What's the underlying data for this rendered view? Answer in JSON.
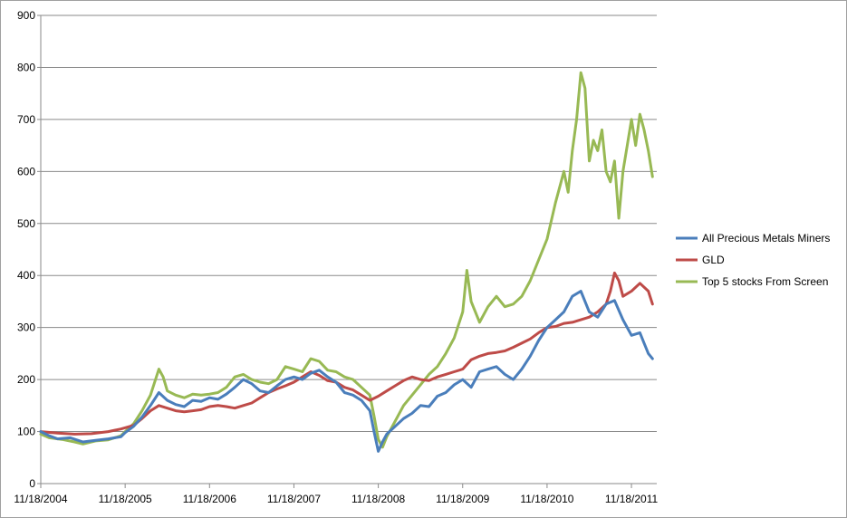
{
  "chart_data": {
    "type": "line",
    "title": "",
    "xlabel": "",
    "ylabel": "",
    "ylim": [
      0,
      900
    ],
    "yticks": [
      0,
      100,
      200,
      300,
      400,
      500,
      600,
      700,
      800,
      900
    ],
    "x_tick_labels": [
      "11/18/2004",
      "11/18/2005",
      "11/18/2006",
      "11/18/2007",
      "11/18/2008",
      "11/18/2009",
      "11/18/2010",
      "11/18/2011"
    ],
    "xlim": [
      2004.0,
      2011.3
    ],
    "grid": true,
    "legend_position": "right",
    "series": [
      {
        "name": "All Precious Metals Miners",
        "color": "#4a7ebb",
        "points": [
          [
            2004.0,
            100
          ],
          [
            2004.1,
            92
          ],
          [
            2004.2,
            86
          ],
          [
            2004.35,
            88
          ],
          [
            2004.5,
            80
          ],
          [
            2004.65,
            83
          ],
          [
            2004.8,
            86
          ],
          [
            2004.95,
            90
          ],
          [
            2005.0,
            98
          ],
          [
            2005.1,
            110
          ],
          [
            2005.2,
            128
          ],
          [
            2005.3,
            150
          ],
          [
            2005.4,
            175
          ],
          [
            2005.5,
            160
          ],
          [
            2005.6,
            152
          ],
          [
            2005.7,
            148
          ],
          [
            2005.8,
            160
          ],
          [
            2005.9,
            158
          ],
          [
            2006.0,
            165
          ],
          [
            2006.1,
            162
          ],
          [
            2006.2,
            172
          ],
          [
            2006.3,
            185
          ],
          [
            2006.4,
            200
          ],
          [
            2006.5,
            192
          ],
          [
            2006.6,
            178
          ],
          [
            2006.7,
            175
          ],
          [
            2006.8,
            188
          ],
          [
            2006.9,
            200
          ],
          [
            2007.0,
            205
          ],
          [
            2007.1,
            200
          ],
          [
            2007.2,
            212
          ],
          [
            2007.3,
            218
          ],
          [
            2007.4,
            205
          ],
          [
            2007.5,
            195
          ],
          [
            2007.6,
            175
          ],
          [
            2007.7,
            170
          ],
          [
            2007.8,
            160
          ],
          [
            2007.9,
            140
          ],
          [
            2007.95,
            100
          ],
          [
            2008.0,
            62
          ],
          [
            2008.05,
            80
          ],
          [
            2008.1,
            95
          ],
          [
            2008.2,
            110
          ],
          [
            2008.3,
            125
          ],
          [
            2008.4,
            135
          ],
          [
            2008.5,
            150
          ],
          [
            2008.6,
            148
          ],
          [
            2008.7,
            168
          ],
          [
            2008.8,
            175
          ],
          [
            2008.9,
            190
          ],
          [
            2009.0,
            200
          ],
          [
            2009.1,
            185
          ],
          [
            2009.2,
            215
          ],
          [
            2009.3,
            220
          ],
          [
            2009.4,
            225
          ],
          [
            2009.5,
            210
          ],
          [
            2009.6,
            200
          ],
          [
            2009.7,
            220
          ],
          [
            2009.8,
            245
          ],
          [
            2009.9,
            275
          ],
          [
            2010.0,
            300
          ],
          [
            2010.1,
            315
          ],
          [
            2010.2,
            330
          ],
          [
            2010.3,
            360
          ],
          [
            2010.4,
            370
          ],
          [
            2010.5,
            330
          ],
          [
            2010.6,
            320
          ],
          [
            2010.7,
            345
          ],
          [
            2010.8,
            352
          ],
          [
            2010.9,
            315
          ],
          [
            2011.0,
            285
          ],
          [
            2011.1,
            290
          ],
          [
            2011.15,
            270
          ],
          [
            2011.2,
            250
          ],
          [
            2011.25,
            240
          ]
        ]
      },
      {
        "name": "GLD",
        "color": "#be4b48",
        "points": [
          [
            2004.0,
            100
          ],
          [
            2004.2,
            97
          ],
          [
            2004.4,
            95
          ],
          [
            2004.6,
            96
          ],
          [
            2004.8,
            100
          ],
          [
            2004.95,
            105
          ],
          [
            2005.1,
            112
          ],
          [
            2005.2,
            125
          ],
          [
            2005.3,
            140
          ],
          [
            2005.4,
            150
          ],
          [
            2005.5,
            145
          ],
          [
            2005.6,
            140
          ],
          [
            2005.7,
            138
          ],
          [
            2005.8,
            140
          ],
          [
            2005.9,
            142
          ],
          [
            2006.0,
            148
          ],
          [
            2006.1,
            150
          ],
          [
            2006.2,
            148
          ],
          [
            2006.3,
            145
          ],
          [
            2006.4,
            150
          ],
          [
            2006.5,
            155
          ],
          [
            2006.6,
            165
          ],
          [
            2006.7,
            175
          ],
          [
            2006.8,
            182
          ],
          [
            2006.9,
            188
          ],
          [
            2007.0,
            195
          ],
          [
            2007.1,
            205
          ],
          [
            2007.2,
            215
          ],
          [
            2007.3,
            208
          ],
          [
            2007.4,
            198
          ],
          [
            2007.5,
            195
          ],
          [
            2007.6,
            185
          ],
          [
            2007.7,
            180
          ],
          [
            2007.8,
            170
          ],
          [
            2007.9,
            160
          ],
          [
            2008.0,
            168
          ],
          [
            2008.1,
            178
          ],
          [
            2008.2,
            188
          ],
          [
            2008.3,
            198
          ],
          [
            2008.4,
            205
          ],
          [
            2008.5,
            200
          ],
          [
            2008.6,
            198
          ],
          [
            2008.7,
            205
          ],
          [
            2008.8,
            210
          ],
          [
            2008.9,
            215
          ],
          [
            2009.0,
            220
          ],
          [
            2009.1,
            238
          ],
          [
            2009.2,
            245
          ],
          [
            2009.3,
            250
          ],
          [
            2009.4,
            252
          ],
          [
            2009.5,
            255
          ],
          [
            2009.6,
            262
          ],
          [
            2009.7,
            270
          ],
          [
            2009.8,
            278
          ],
          [
            2009.9,
            290
          ],
          [
            2010.0,
            300
          ],
          [
            2010.1,
            302
          ],
          [
            2010.2,
            308
          ],
          [
            2010.3,
            310
          ],
          [
            2010.4,
            315
          ],
          [
            2010.5,
            320
          ],
          [
            2010.6,
            330
          ],
          [
            2010.7,
            345
          ],
          [
            2010.75,
            370
          ],
          [
            2010.8,
            405
          ],
          [
            2010.85,
            390
          ],
          [
            2010.9,
            360
          ],
          [
            2011.0,
            370
          ],
          [
            2011.1,
            385
          ],
          [
            2011.2,
            370
          ],
          [
            2011.25,
            345
          ]
        ]
      },
      {
        "name": "Top 5 stocks From Screen",
        "color": "#98b954",
        "points": [
          [
            2004.0,
            95
          ],
          [
            2004.1,
            88
          ],
          [
            2004.25,
            85
          ],
          [
            2004.4,
            80
          ],
          [
            2004.5,
            76
          ],
          [
            2004.65,
            82
          ],
          [
            2004.8,
            84
          ],
          [
            2004.95,
            92
          ],
          [
            2005.0,
            100
          ],
          [
            2005.1,
            115
          ],
          [
            2005.2,
            140
          ],
          [
            2005.3,
            170
          ],
          [
            2005.4,
            220
          ],
          [
            2005.45,
            205
          ],
          [
            2005.5,
            178
          ],
          [
            2005.6,
            170
          ],
          [
            2005.7,
            165
          ],
          [
            2005.8,
            172
          ],
          [
            2005.9,
            170
          ],
          [
            2006.0,
            172
          ],
          [
            2006.1,
            175
          ],
          [
            2006.2,
            185
          ],
          [
            2006.3,
            205
          ],
          [
            2006.4,
            210
          ],
          [
            2006.5,
            200
          ],
          [
            2006.6,
            195
          ],
          [
            2006.7,
            192
          ],
          [
            2006.8,
            200
          ],
          [
            2006.9,
            225
          ],
          [
            2007.0,
            220
          ],
          [
            2007.1,
            215
          ],
          [
            2007.2,
            240
          ],
          [
            2007.3,
            235
          ],
          [
            2007.4,
            218
          ],
          [
            2007.5,
            215
          ],
          [
            2007.6,
            205
          ],
          [
            2007.7,
            200
          ],
          [
            2007.8,
            185
          ],
          [
            2007.9,
            170
          ],
          [
            2007.95,
            130
          ],
          [
            2008.0,
            85
          ],
          [
            2008.05,
            70
          ],
          [
            2008.1,
            90
          ],
          [
            2008.2,
            120
          ],
          [
            2008.3,
            150
          ],
          [
            2008.4,
            170
          ],
          [
            2008.5,
            190
          ],
          [
            2008.6,
            210
          ],
          [
            2008.7,
            225
          ],
          [
            2008.8,
            250
          ],
          [
            2008.9,
            280
          ],
          [
            2009.0,
            330
          ],
          [
            2009.05,
            410
          ],
          [
            2009.1,
            350
          ],
          [
            2009.2,
            310
          ],
          [
            2009.3,
            340
          ],
          [
            2009.4,
            360
          ],
          [
            2009.5,
            340
          ],
          [
            2009.6,
            345
          ],
          [
            2009.7,
            360
          ],
          [
            2009.8,
            390
          ],
          [
            2009.9,
            430
          ],
          [
            2010.0,
            470
          ],
          [
            2010.1,
            540
          ],
          [
            2010.2,
            600
          ],
          [
            2010.25,
            560
          ],
          [
            2010.3,
            640
          ],
          [
            2010.35,
            700
          ],
          [
            2010.4,
            790
          ],
          [
            2010.45,
            760
          ],
          [
            2010.5,
            620
          ],
          [
            2010.55,
            660
          ],
          [
            2010.6,
            640
          ],
          [
            2010.65,
            680
          ],
          [
            2010.7,
            600
          ],
          [
            2010.75,
            580
          ],
          [
            2010.8,
            620
          ],
          [
            2010.85,
            510
          ],
          [
            2010.9,
            600
          ],
          [
            2010.95,
            650
          ],
          [
            2011.0,
            700
          ],
          [
            2011.05,
            650
          ],
          [
            2011.1,
            710
          ],
          [
            2011.15,
            680
          ],
          [
            2011.2,
            640
          ],
          [
            2011.25,
            590
          ]
        ]
      }
    ]
  }
}
